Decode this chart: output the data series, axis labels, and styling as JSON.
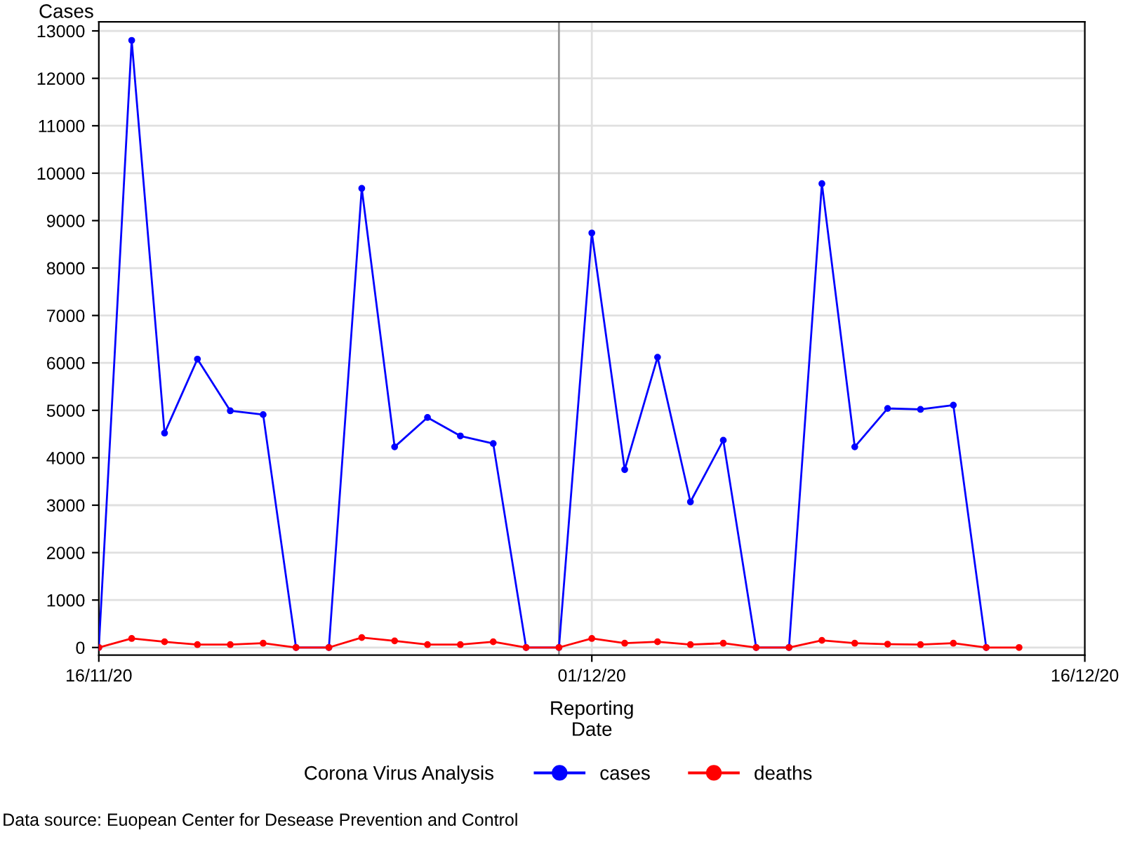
{
  "chart_data": {
    "type": "line",
    "ylabel": "Cases",
    "xlabel": "Reporting\nDate",
    "legend_title": "Corona Virus Analysis",
    "legend": "bottom",
    "grid": true,
    "marker": "circle",
    "line_style": "solid",
    "x": [
      "2020-11-16",
      "2020-11-17",
      "2020-11-18",
      "2020-11-19",
      "2020-11-20",
      "2020-11-21",
      "2020-11-22",
      "2020-11-23",
      "2020-11-24",
      "2020-11-25",
      "2020-11-26",
      "2020-11-27",
      "2020-11-28",
      "2020-11-29",
      "2020-11-30",
      "2020-12-01",
      "2020-12-02",
      "2020-12-03",
      "2020-12-04",
      "2020-12-05",
      "2020-12-06",
      "2020-12-07",
      "2020-12-08",
      "2020-12-09",
      "2020-12-10",
      "2020-12-11",
      "2020-12-12",
      "2020-12-13",
      "2020-12-14"
    ],
    "series": [
      {
        "name": "cases",
        "color": "#0000ff",
        "values": [
          0,
          12800,
          4520,
          6080,
          4990,
          4910,
          0,
          0,
          9680,
          4230,
          4850,
          4460,
          4300,
          0,
          0,
          8740,
          3750,
          6120,
          3070,
          4370,
          0,
          0,
          9780,
          4230,
          5040,
          5020,
          5110,
          0,
          null
        ]
      },
      {
        "name": "deaths",
        "color": "#ff0000",
        "values": [
          0,
          190,
          120,
          60,
          60,
          90,
          0,
          0,
          210,
          140,
          60,
          60,
          120,
          0,
          0,
          190,
          90,
          120,
          60,
          90,
          0,
          0,
          150,
          90,
          70,
          60,
          90,
          0,
          0
        ]
      }
    ],
    "xlim": [
      "2020-11-16",
      "2020-12-16"
    ],
    "xticks": [
      {
        "value": "2020-11-16",
        "label": "16/11/20"
      },
      {
        "value": "2020-12-01",
        "label": "01/12/20"
      },
      {
        "value": "2020-12-16",
        "label": "16/12/20"
      }
    ],
    "ylim": [
      -160,
      13190
    ],
    "yticks": [
      0,
      1000,
      2000,
      3000,
      4000,
      5000,
      6000,
      7000,
      8000,
      9000,
      10000,
      11000,
      12000,
      13000
    ],
    "ref_lines": [
      {
        "axis": "x",
        "value": "2020-11-30",
        "label": null,
        "color": "#999999"
      }
    ],
    "annotations": [
      "Data source: Euopean Center for Desease Prevention and Control"
    ]
  }
}
